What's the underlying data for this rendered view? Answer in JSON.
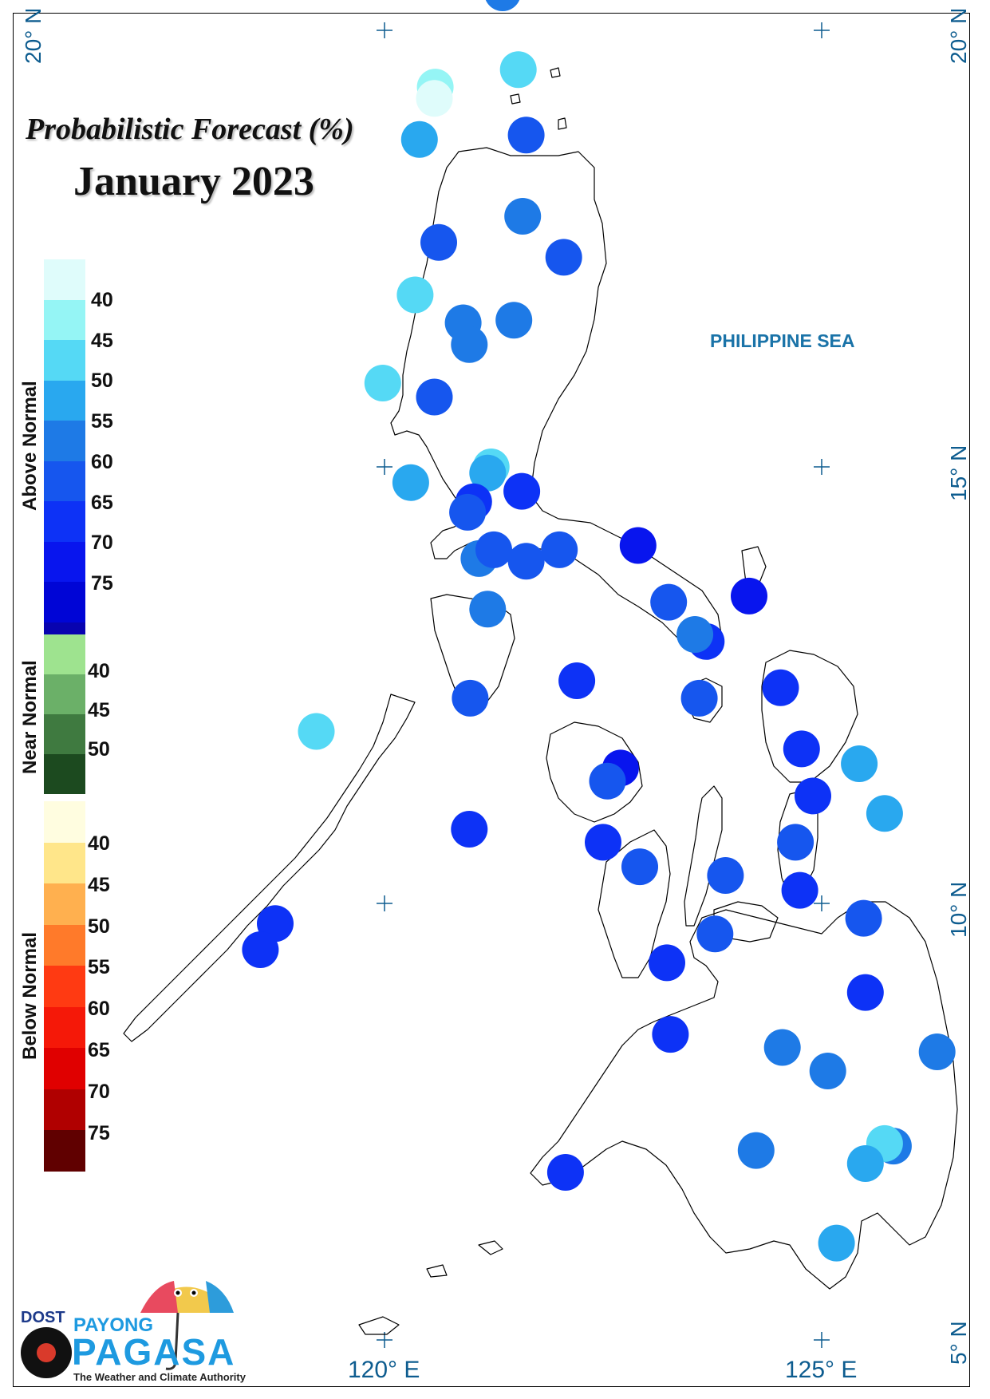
{
  "title": {
    "line1": "Probabilistic Forecast (%)",
    "line2": "January 2023"
  },
  "sea_label": "PHILIPPINE SEA",
  "grid_labels": {
    "lat_20": "20° N",
    "lat_15": "15° N",
    "lat_10": "10° N",
    "lat_5": "5° N",
    "lon_120": "120° E",
    "lon_125": "125° E"
  },
  "legend": {
    "above": {
      "title": "Above Normal",
      "colors": [
        "#dffcfb",
        "#95f5f5",
        "#55d9f5",
        "#29a8ef",
        "#1e7ae6",
        "#1656ee",
        "#0d32f6",
        "#0815ee",
        "#0005d6",
        "#0803b0"
      ],
      "ticks": [
        "40",
        "45",
        "50",
        "55",
        "60",
        "65",
        "70",
        "75"
      ]
    },
    "near": {
      "title": "Near Normal",
      "colors": [
        "#9ee38f",
        "#6bb068",
        "#3f7a40",
        "#1c4a1f"
      ],
      "ticks": [
        "40",
        "45",
        "50"
      ]
    },
    "below": {
      "title": "Below Normal",
      "colors": [
        "#fffde0",
        "#ffe68a",
        "#ffb04f",
        "#ff7a2a",
        "#ff3a12",
        "#f51808",
        "#e00000",
        "#b00000",
        "#600000"
      ],
      "ticks": [
        "40",
        "45",
        "50",
        "55",
        "60",
        "65",
        "70",
        "75"
      ]
    }
  },
  "stations": [
    {
      "lon": 121.35,
      "lat": 20.43,
      "color": "#1e7ae6"
    },
    {
      "lon": 121.53,
      "lat": 19.55,
      "color": "#55d9f5"
    },
    {
      "lon": 120.58,
      "lat": 19.35,
      "color": "#95f5f5"
    },
    {
      "lon": 120.57,
      "lat": 19.22,
      "color": "#dffcfb"
    },
    {
      "lon": 120.4,
      "lat": 18.75,
      "color": "#29a8ef"
    },
    {
      "lon": 121.62,
      "lat": 18.8,
      "color": "#1656ee"
    },
    {
      "lon": 121.58,
      "lat": 17.87,
      "color": "#1e7ae6"
    },
    {
      "lon": 120.62,
      "lat": 17.57,
      "color": "#1656ee"
    },
    {
      "lon": 122.05,
      "lat": 17.4,
      "color": "#1656ee"
    },
    {
      "lon": 120.35,
      "lat": 16.97,
      "color": "#55d9f5"
    },
    {
      "lon": 121.48,
      "lat": 16.68,
      "color": "#1e7ae6"
    },
    {
      "lon": 120.9,
      "lat": 16.65,
      "color": "#1e7ae6"
    },
    {
      "lon": 120.97,
      "lat": 16.4,
      "color": "#1e7ae6"
    },
    {
      "lon": 119.98,
      "lat": 15.96,
      "color": "#55d9f5"
    },
    {
      "lon": 120.57,
      "lat": 15.8,
      "color": "#1656ee"
    },
    {
      "lon": 121.22,
      "lat": 15.0,
      "color": "#55d9f5"
    },
    {
      "lon": 121.18,
      "lat": 14.93,
      "color": "#29a8ef"
    },
    {
      "lon": 120.3,
      "lat": 14.82,
      "color": "#29a8ef"
    },
    {
      "lon": 121.57,
      "lat": 14.72,
      "color": "#0d32f6"
    },
    {
      "lon": 121.02,
      "lat": 14.6,
      "color": "#0d32f6"
    },
    {
      "lon": 120.95,
      "lat": 14.48,
      "color": "#1656ee"
    },
    {
      "lon": 121.08,
      "lat": 13.95,
      "color": "#1e7ae6"
    },
    {
      "lon": 121.25,
      "lat": 14.05,
      "color": "#1656ee"
    },
    {
      "lon": 121.62,
      "lat": 13.92,
      "color": "#1656ee"
    },
    {
      "lon": 122.0,
      "lat": 14.05,
      "color": "#1656ee"
    },
    {
      "lon": 122.9,
      "lat": 14.1,
      "color": "#0815ee"
    },
    {
      "lon": 123.25,
      "lat": 13.45,
      "color": "#1656ee"
    },
    {
      "lon": 124.17,
      "lat": 13.52,
      "color": "#0815ee"
    },
    {
      "lon": 121.18,
      "lat": 13.37,
      "color": "#1e7ae6"
    },
    {
      "lon": 123.68,
      "lat": 13.0,
      "color": "#0d32f6"
    },
    {
      "lon": 123.55,
      "lat": 13.08,
      "color": "#1e7ae6"
    },
    {
      "lon": 122.2,
      "lat": 12.55,
      "color": "#0d32f6"
    },
    {
      "lon": 124.53,
      "lat": 12.47,
      "color": "#0d32f6"
    },
    {
      "lon": 123.6,
      "lat": 12.35,
      "color": "#1656ee"
    },
    {
      "lon": 120.98,
      "lat": 12.35,
      "color": "#1656ee"
    },
    {
      "lon": 119.22,
      "lat": 11.97,
      "color": "#55d9f5"
    },
    {
      "lon": 124.77,
      "lat": 11.77,
      "color": "#0d32f6"
    },
    {
      "lon": 125.43,
      "lat": 11.6,
      "color": "#29a8ef"
    },
    {
      "lon": 122.7,
      "lat": 11.55,
      "color": "#0815ee"
    },
    {
      "lon": 122.55,
      "lat": 11.4,
      "color": "#1656ee"
    },
    {
      "lon": 124.9,
      "lat": 11.23,
      "color": "#0d32f6"
    },
    {
      "lon": 125.72,
      "lat": 11.03,
      "color": "#29a8ef"
    },
    {
      "lon": 120.97,
      "lat": 10.85,
      "color": "#0d32f6"
    },
    {
      "lon": 122.5,
      "lat": 10.7,
      "color": "#0d32f6"
    },
    {
      "lon": 124.7,
      "lat": 10.7,
      "color": "#1656ee"
    },
    {
      "lon": 122.92,
      "lat": 10.42,
      "color": "#1656ee"
    },
    {
      "lon": 123.9,
      "lat": 10.32,
      "color": "#1656ee"
    },
    {
      "lon": 124.75,
      "lat": 10.15,
      "color": "#0d32f6"
    },
    {
      "lon": 118.75,
      "lat": 9.77,
      "color": "#0d32f6"
    },
    {
      "lon": 118.58,
      "lat": 9.47,
      "color": "#0d32f6"
    },
    {
      "lon": 125.48,
      "lat": 9.83,
      "color": "#1656ee"
    },
    {
      "lon": 123.78,
      "lat": 9.65,
      "color": "#1656ee"
    },
    {
      "lon": 123.23,
      "lat": 9.32,
      "color": "#0d32f6"
    },
    {
      "lon": 125.5,
      "lat": 8.98,
      "color": "#0d32f6"
    },
    {
      "lon": 123.27,
      "lat": 8.5,
      "color": "#0d32f6"
    },
    {
      "lon": 124.55,
      "lat": 8.35,
      "color": "#1e7ae6"
    },
    {
      "lon": 126.32,
      "lat": 8.3,
      "color": "#1e7ae6"
    },
    {
      "lon": 125.07,
      "lat": 8.08,
      "color": "#1e7ae6"
    },
    {
      "lon": 125.82,
      "lat": 7.22,
      "color": "#1e7ae6"
    },
    {
      "lon": 125.72,
      "lat": 7.25,
      "color": "#55d9f5"
    },
    {
      "lon": 125.5,
      "lat": 7.02,
      "color": "#29a8ef"
    },
    {
      "lon": 124.25,
      "lat": 7.17,
      "color": "#1e7ae6"
    },
    {
      "lon": 122.07,
      "lat": 6.92,
      "color": "#0d32f6"
    },
    {
      "lon": 125.17,
      "lat": 6.11,
      "color": "#29a8ef"
    }
  ]
}
